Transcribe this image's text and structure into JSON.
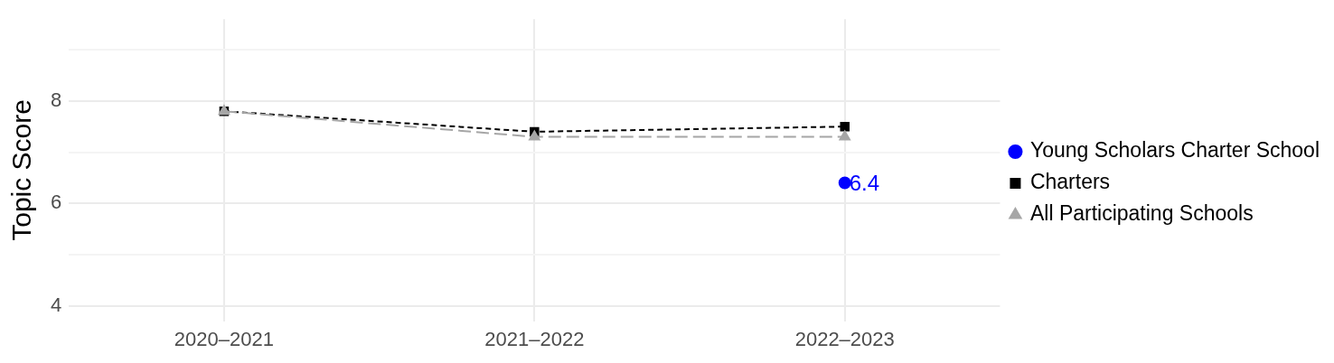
{
  "chart_data": {
    "type": "line",
    "ylabel": "Topic Score",
    "categories": [
      "2020–2021",
      "2021–2022",
      "2022–2023"
    ],
    "ylim": [
      3.7,
      9.6
    ],
    "yticks": [
      4,
      {
        "value": 5,
        "label": null
      },
      6,
      {
        "value": 7,
        "label": null
      },
      8,
      {
        "value": 9,
        "label": null
      }
    ],
    "grid": true,
    "legend": "right",
    "series": [
      {
        "name": "Young Scholars Charter School",
        "color": "#0000ff",
        "values": [
          null,
          null,
          6.4
        ],
        "marker": "circle",
        "line_style": "solid",
        "value_labels": [
          null,
          null,
          "6.4"
        ]
      },
      {
        "name": "Charters",
        "color": "#000000",
        "values": [
          7.8,
          7.4,
          7.5
        ],
        "marker": "square",
        "line_style": "dashed"
      },
      {
        "name": "All Participating Schools",
        "color": "#a6a6a6",
        "values": [
          7.8,
          7.3,
          7.3
        ],
        "marker": "triangle",
        "line_style": "dashed"
      }
    ]
  }
}
